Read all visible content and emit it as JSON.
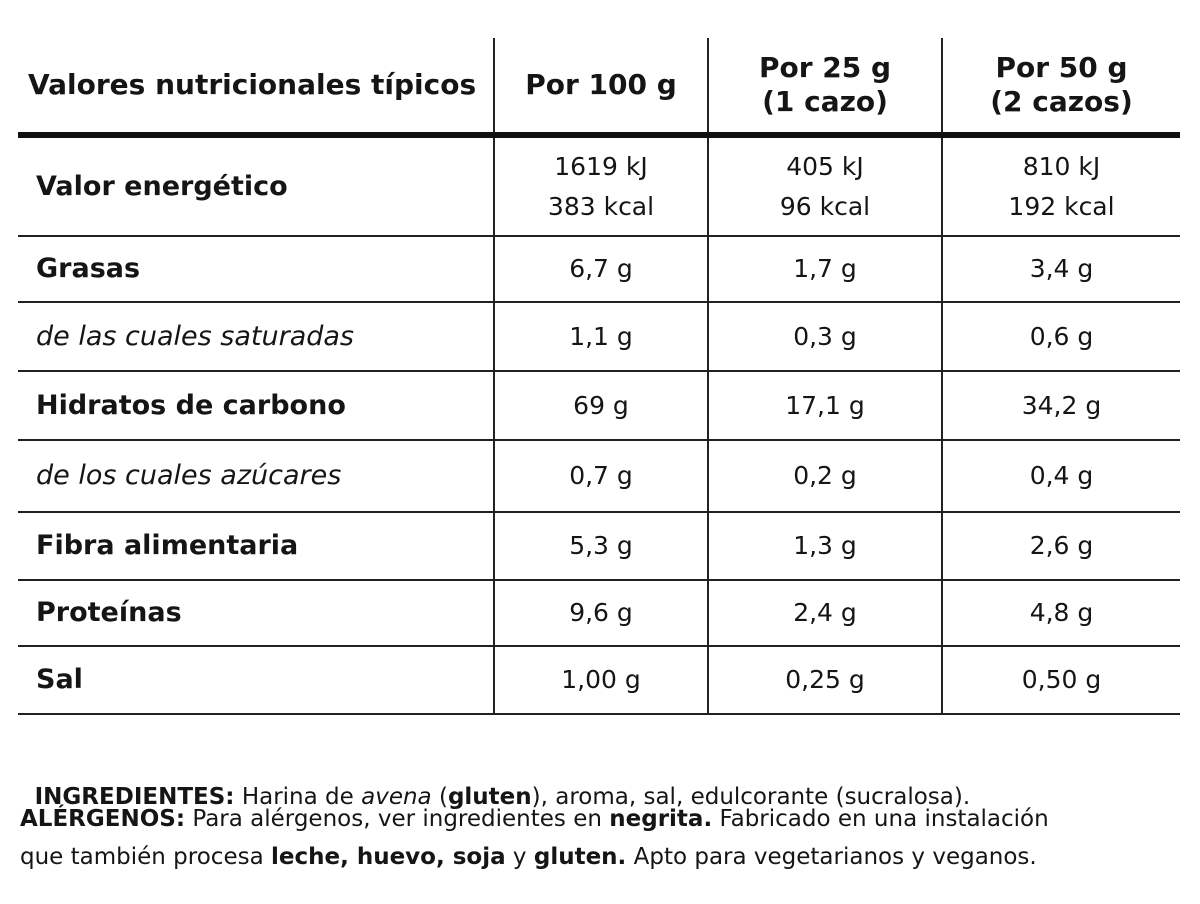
{
  "header": {
    "label": "Valores nutricionales típicos",
    "columns": [
      [
        "Por 100 g"
      ],
      [
        "Por 25 g",
        "(1 cazo)"
      ],
      [
        "Por 50 g",
        "(2 cazos)"
      ]
    ]
  },
  "rows": [
    {
      "label": "Valor energético",
      "values": [
        [
          "1619 kJ",
          "383 kcal"
        ],
        [
          "405 kJ",
          "96 kcal"
        ],
        [
          "810 kJ",
          "192 kcal"
        ]
      ]
    },
    {
      "label": "Grasas",
      "values": [
        [
          "6,7 g"
        ],
        [
          "1,7 g"
        ],
        [
          "3,4 g"
        ]
      ]
    },
    {
      "label": "de las cuales saturadas",
      "values": [
        [
          "1,1 g"
        ],
        [
          "0,3 g"
        ],
        [
          "0,6 g"
        ]
      ]
    },
    {
      "label": "Hidratos de carbono",
      "values": [
        [
          "69 g"
        ],
        [
          "17,1 g"
        ],
        [
          "34,2 g"
        ]
      ]
    },
    {
      "label": "de los cuales azúcares",
      "values": [
        [
          "0,7 g"
        ],
        [
          "0,2 g"
        ],
        [
          "0,4 g"
        ]
      ]
    },
    {
      "label": "Fibra alimentaria",
      "values": [
        [
          "5,3 g"
        ],
        [
          "1,3 g"
        ],
        [
          "2,6 g"
        ]
      ]
    },
    {
      "label": "Proteínas",
      "values": [
        [
          "9,6 g"
        ],
        [
          "2,4 g"
        ],
        [
          "4,8 g"
        ]
      ]
    },
    {
      "label": "Sal",
      "values": [
        [
          "1,00 g"
        ],
        [
          "0,25 g"
        ],
        [
          "0,50 g"
        ]
      ]
    }
  ],
  "ingredients": {
    "label": "INGREDIENTES:",
    "parts": [
      " Harina de ",
      "avena",
      " (",
      "gluten",
      "), aroma, sal, edulcorante (sucralosa)."
    ]
  },
  "allergens": {
    "lines": [
      [
        "ALÉRGENOS:",
        " Para alérgenos, ver ingredientes en ",
        "negrita.",
        " Fabricado en una instalación"
      ],
      [
        "que también procesa ",
        "leche, huevo, soja",
        " y ",
        "gluten.",
        " Apto para vegetarianos y veganos."
      ]
    ]
  }
}
